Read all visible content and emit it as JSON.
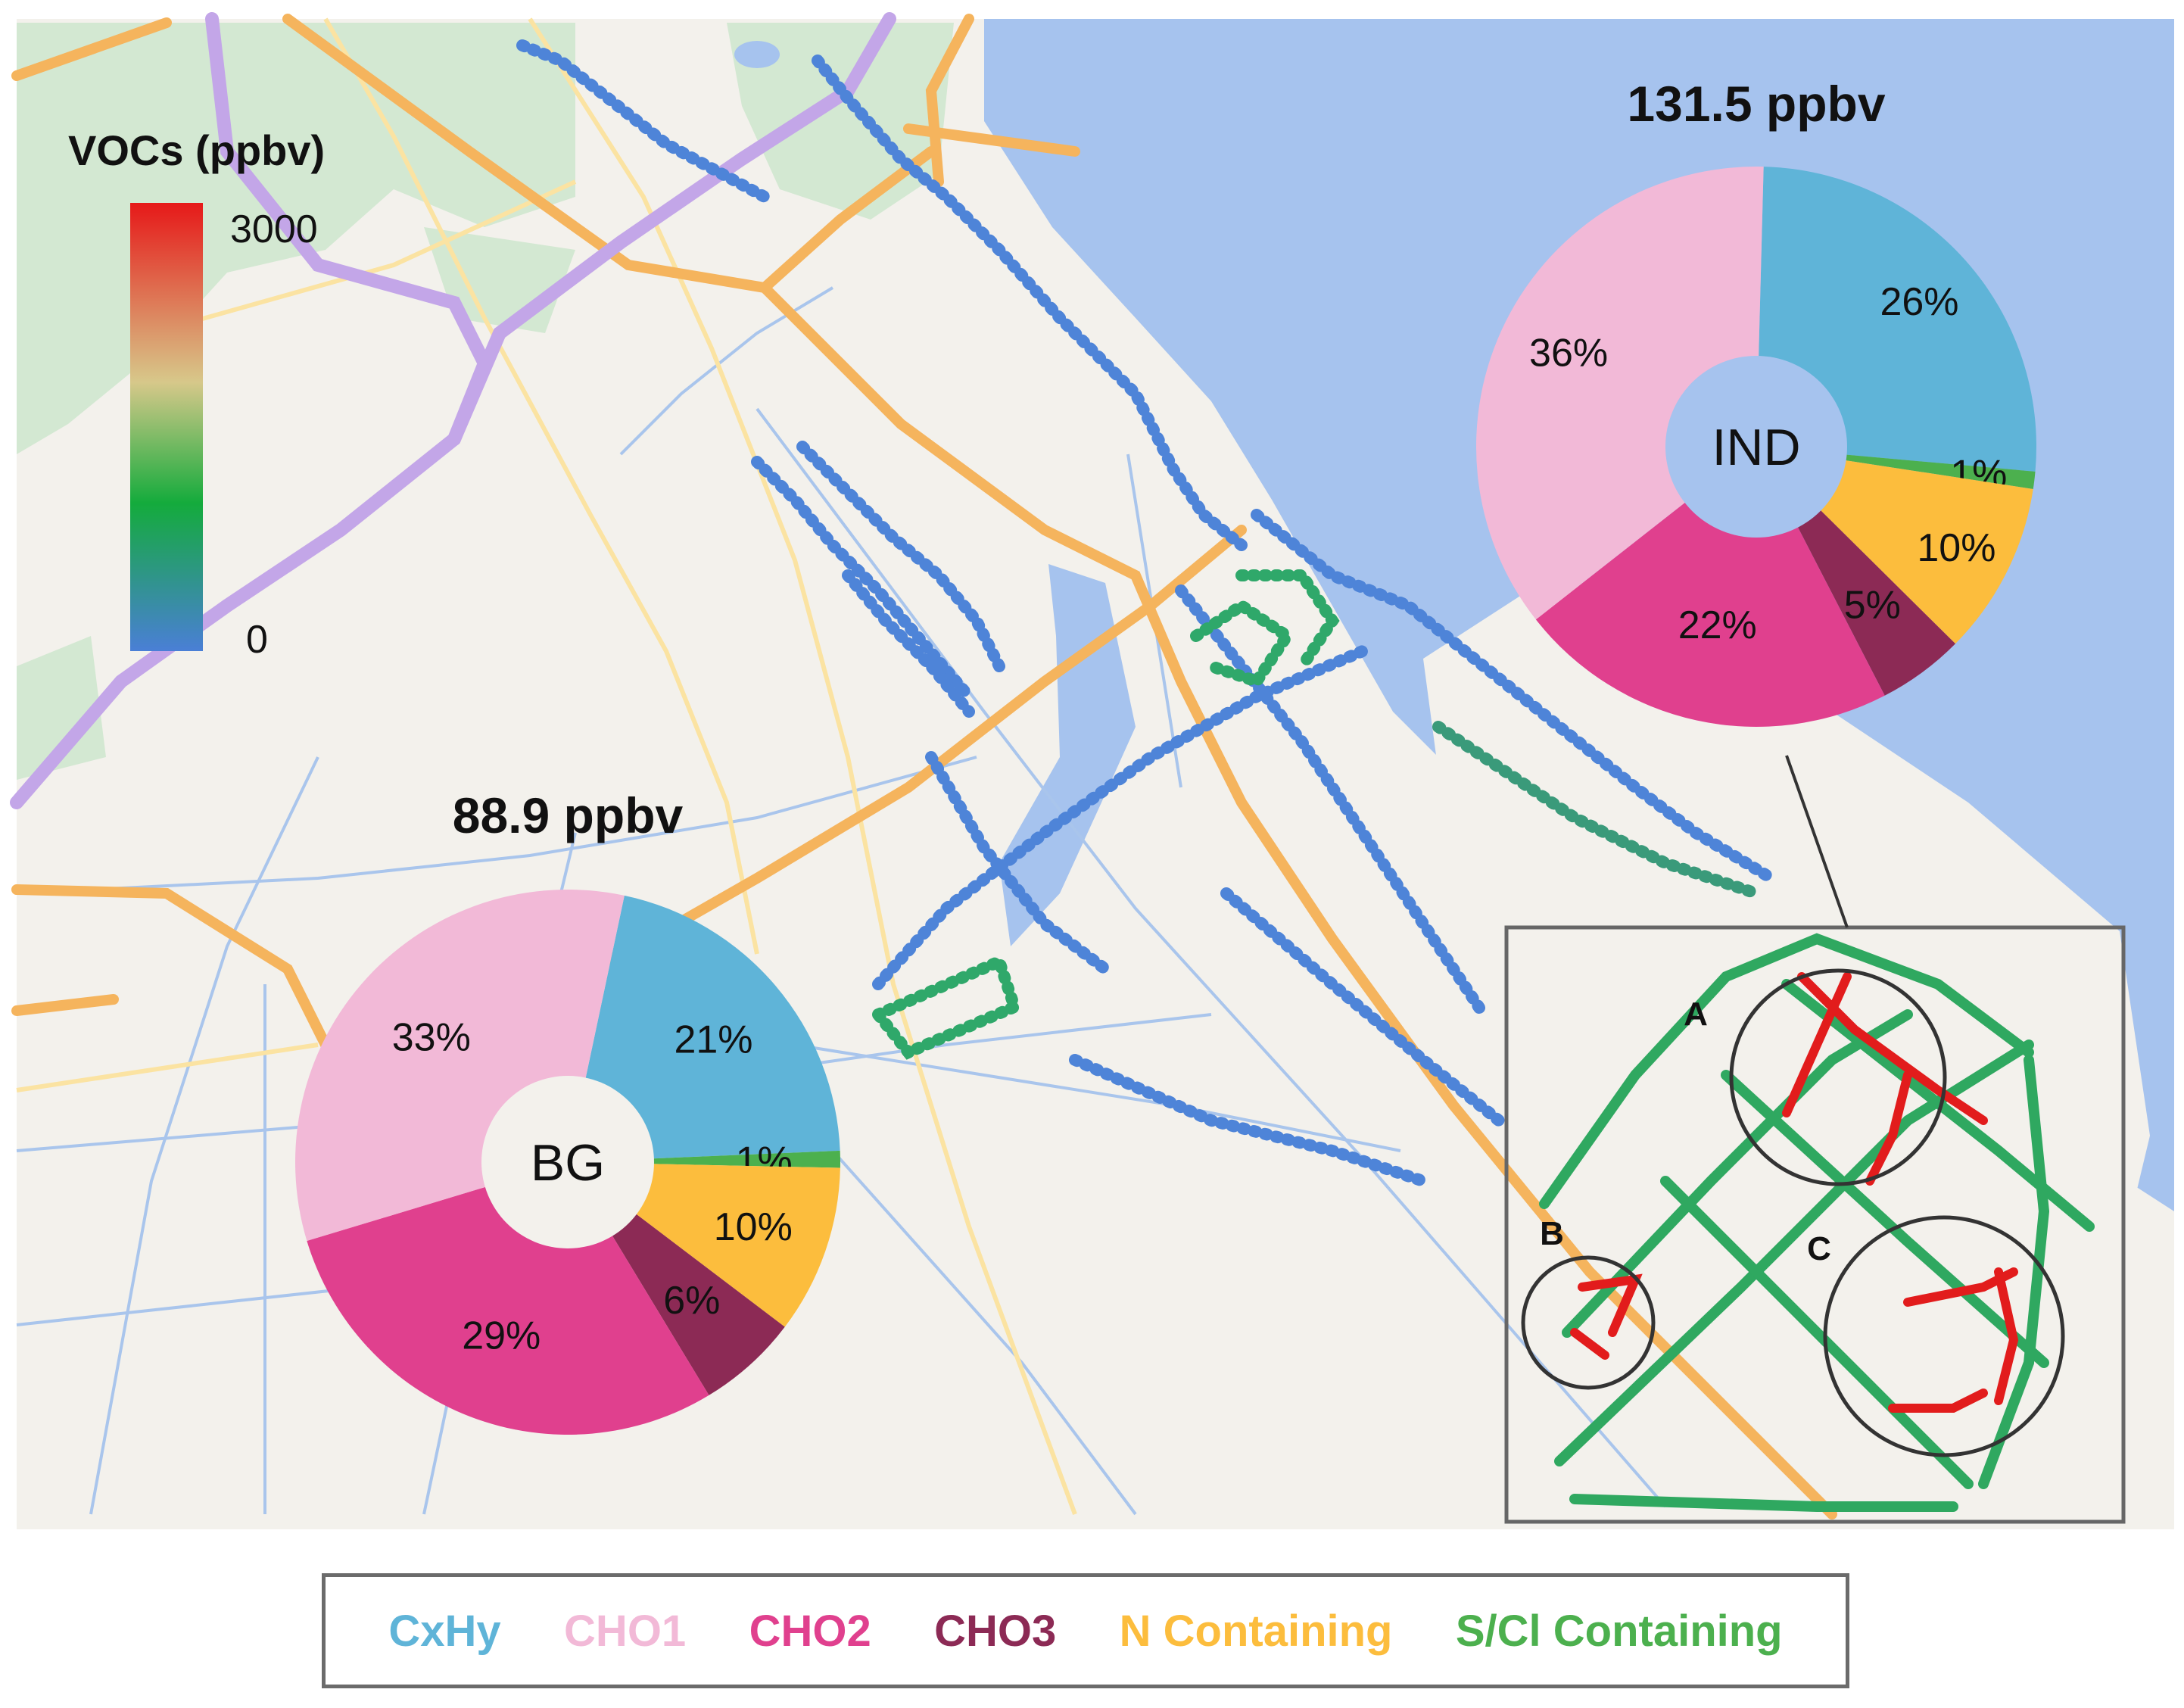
{
  "colorbar": {
    "title": "VOCs (ppbv)",
    "max_label": "3000",
    "min_label": "0",
    "colors": [
      "#4a7fd6",
      "#14ab3c",
      "#d7c88a",
      "#e61919"
    ]
  },
  "categories": [
    {
      "name": "CxHy",
      "color": "#5fb4d8"
    },
    {
      "name": "CHO1",
      "color": "#f2b9d7"
    },
    {
      "name": "CHO2",
      "color": "#e0408e"
    },
    {
      "name": "CHO3",
      "color": "#8c2a55"
    },
    {
      "name": "N Containing",
      "color": "#fcbd3d"
    },
    {
      "name": "S/Cl Containing",
      "color": "#4cb04e"
    }
  ],
  "chart_data": [
    {
      "type": "pie",
      "title": "131.5 ppbv",
      "center_label": "IND",
      "categories": [
        "CxHy",
        "S/Cl Containing",
        "N Containing",
        "CHO3",
        "CHO2",
        "CHO1"
      ],
      "values": [
        26,
        1,
        10,
        5,
        22,
        36
      ],
      "labels": [
        "26%",
        "1%",
        "10%",
        "5%",
        "22%",
        "36%"
      ]
    },
    {
      "type": "pie",
      "title": "88.9 ppbv",
      "center_label": "BG",
      "categories": [
        "CxHy",
        "S/Cl Containing",
        "N Containing",
        "CHO3",
        "CHO2",
        "CHO1"
      ],
      "values": [
        21,
        1,
        10,
        6,
        29,
        33
      ],
      "labels": [
        "21%",
        "1%",
        "10%",
        "6%",
        "29%",
        "33%"
      ]
    }
  ],
  "hotspots": [
    "A",
    "B",
    "C"
  ]
}
